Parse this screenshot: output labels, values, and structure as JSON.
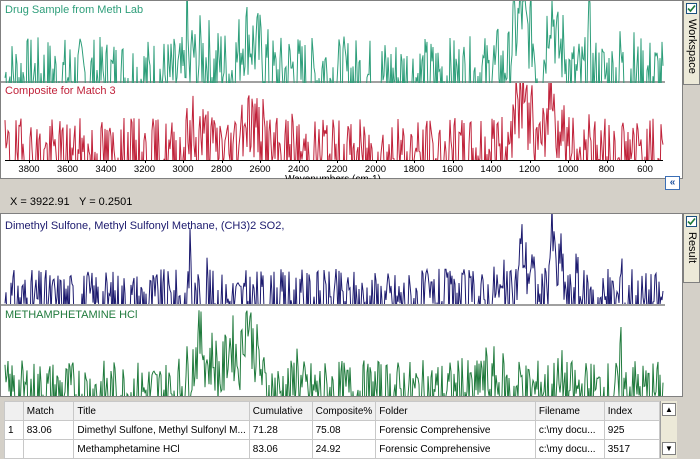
{
  "workspace": {
    "tab_label": "Workspace",
    "spectrum_1_title": "Drug Sample from Meth Lab",
    "spectrum_2_title": "Composite for Match 3",
    "axis_label": "Wavenumbers (cm-1)",
    "ticks": [
      "3800",
      "3600",
      "3400",
      "3200",
      "3000",
      "2800",
      "2600",
      "2400",
      "2200",
      "2000",
      "1800",
      "1600",
      "1400",
      "1200",
      "1000",
      "800",
      "600"
    ],
    "coord_x": "X = 3922.91",
    "coord_y": "Y = 0.2501",
    "colors": {
      "spectrum_1": "#2e9e7a",
      "spectrum_2": "#c0223a"
    }
  },
  "result": {
    "tab_label": "Result",
    "spectrum_1_title": "Dimethyl Sulfone, Methyl Sulfonyl Methane, (CH3)2 SO2,",
    "spectrum_2_title": "METHAMPHETAMINE HCl",
    "colors": {
      "spectrum_1": "#1c1a6e",
      "spectrum_2": "#1f7a3c"
    }
  },
  "table": {
    "headers": [
      "",
      "Match",
      "Title",
      "Cumulative",
      "Composite%",
      "Folder",
      "Filename",
      "Index"
    ],
    "rows": [
      [
        "1",
        "83.06",
        "Dimethyl Sulfone, Methyl Sulfonyl M...",
        "71.28",
        "75.08",
        "Forensic Comprehensive",
        "c:\\my docu...",
        "925"
      ],
      [
        "",
        "",
        "Methamphetamine HCl",
        "83.06",
        "24.92",
        "Forensic Comprehensive",
        "c:\\my docu...",
        "3517"
      ]
    ]
  },
  "icons": {
    "collapse": "double-chevron-left-icon",
    "scroll_up": "arrow-up-icon",
    "scroll_down": "arrow-down-icon",
    "check": "check-icon"
  }
}
